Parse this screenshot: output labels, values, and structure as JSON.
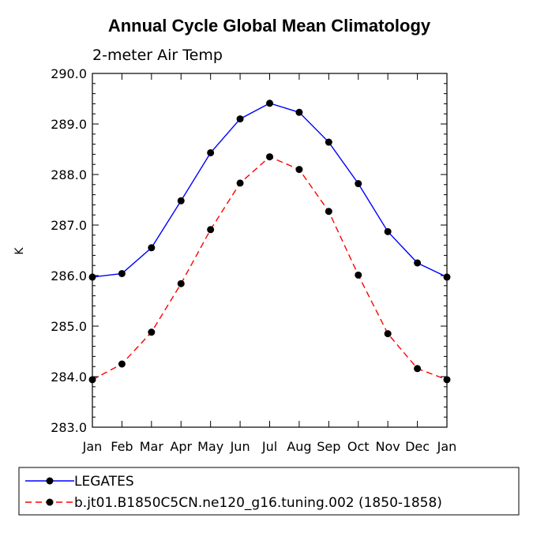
{
  "chart_data": {
    "type": "line",
    "title": "Annual Cycle Global Mean Climatology",
    "subtitle": "2-meter Air Temp",
    "xlabel": "",
    "ylabel": "K",
    "categories": [
      "Jan",
      "Feb",
      "Mar",
      "Apr",
      "May",
      "Jun",
      "Jul",
      "Aug",
      "Sep",
      "Oct",
      "Nov",
      "Dec",
      "Jan"
    ],
    "ylim": [
      283.0,
      290.0
    ],
    "yticks": [
      "283.0",
      "284.0",
      "285.0",
      "286.0",
      "287.0",
      "288.0",
      "289.0",
      "290.0"
    ],
    "grid": false,
    "legend_position": "bottom",
    "series": [
      {
        "name": "LEGATES",
        "color": "#0000ff",
        "line_style": "solid",
        "marker": "filled-circle",
        "values": [
          285.97,
          286.04,
          286.55,
          287.48,
          288.43,
          289.1,
          289.41,
          289.23,
          288.64,
          287.82,
          286.87,
          286.25,
          285.97
        ]
      },
      {
        "name": "b.jt01.B1850C5CN.ne120_g16.tuning.002 (1850-1858)",
        "color": "#ff0000",
        "line_style": "dashed",
        "marker": "filled-circle",
        "values": [
          283.94,
          284.25,
          284.88,
          285.84,
          286.91,
          287.83,
          288.35,
          288.1,
          287.27,
          286.01,
          284.85,
          284.16,
          283.94
        ]
      }
    ]
  }
}
